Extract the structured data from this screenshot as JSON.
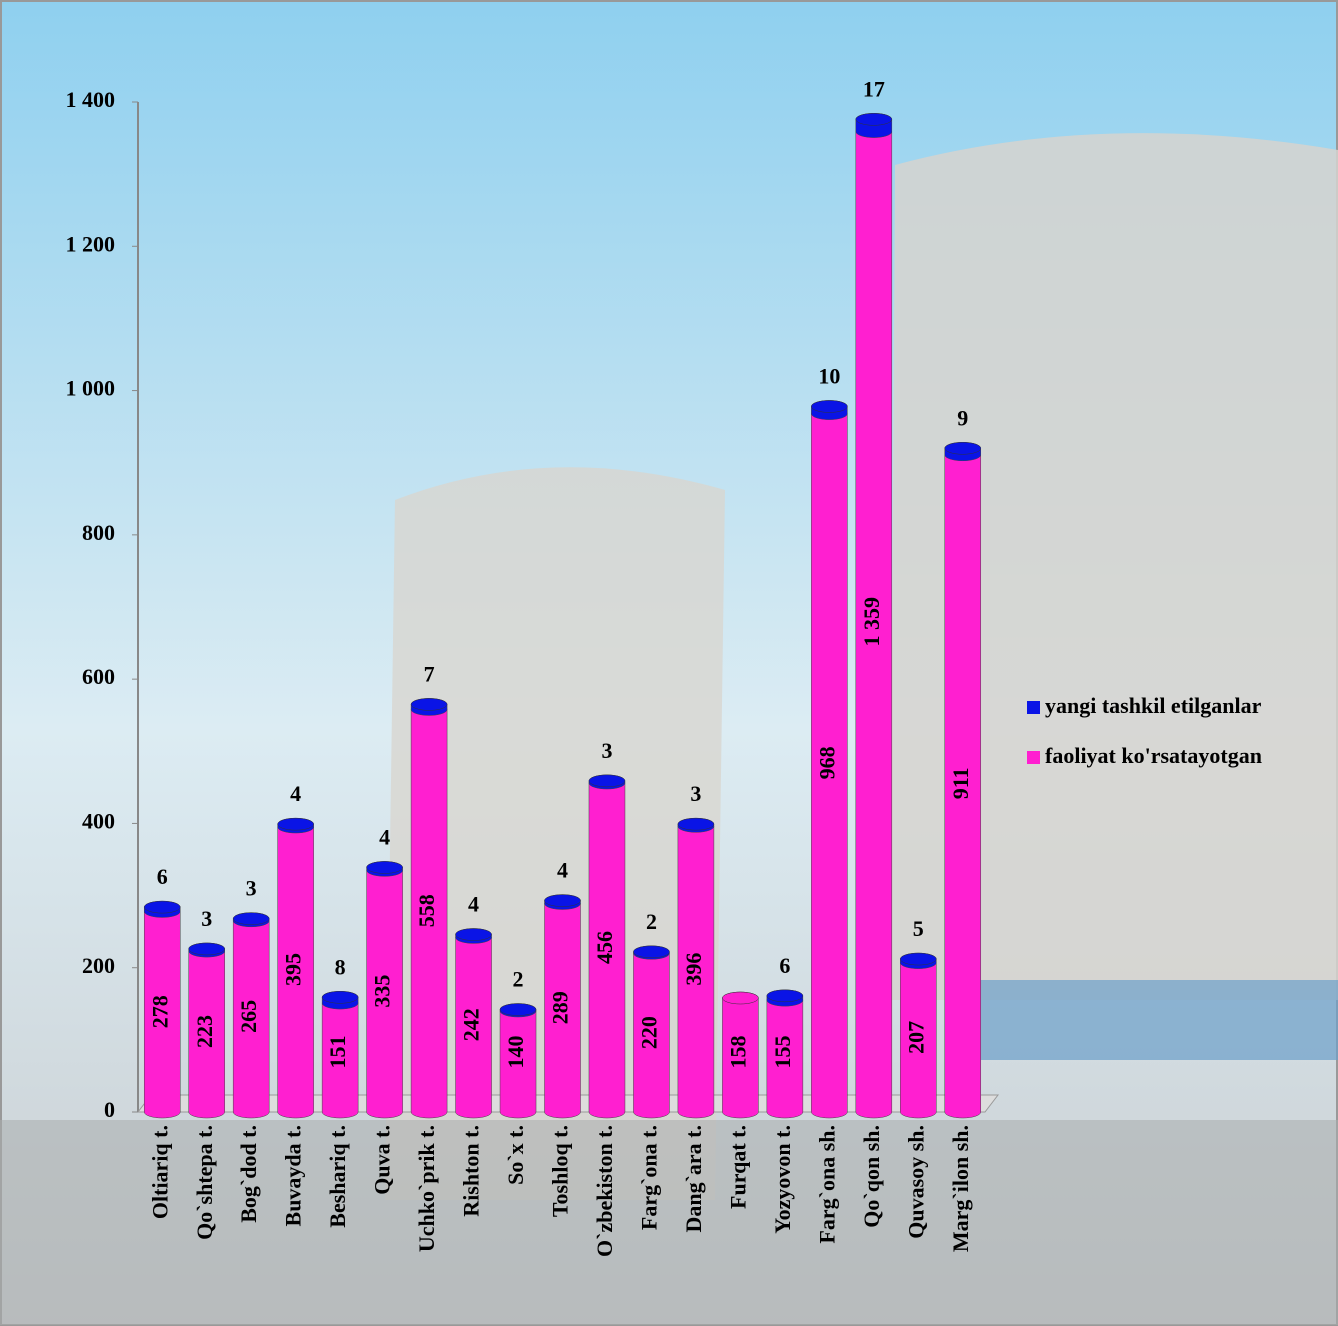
{
  "chart_data": {
    "type": "bar",
    "stacked": true,
    "categories": [
      "Oltiariq t.",
      "Qo`shtepa t.",
      "Bog`dod t.",
      "Buvayda t.",
      "Beshariq t.",
      "Quva t.",
      "Uchko`prik t.",
      "Rishton t.",
      "So`x t.",
      "Toshloq t.",
      "O`zbekiston t.",
      "Farg`ona t.",
      "Dang`ara t.",
      "Furqat t.",
      "Yozyovon t.",
      "Farg`ona sh.",
      "Qo`qon sh.",
      "Quvasoy sh.",
      "Marg`ilon sh."
    ],
    "series": [
      {
        "name": "faoliyat ko'rsatayotgan",
        "color": "#ff1fd0",
        "values": [
          278,
          223,
          265,
          395,
          151,
          335,
          558,
          242,
          140,
          289,
          456,
          220,
          396,
          158,
          155,
          968,
          1359,
          207,
          911
        ],
        "value_labels": [
          "278",
          "223",
          "265",
          "395",
          "151",
          "335",
          "558",
          "242",
          "140",
          "289",
          "456",
          "220",
          "396",
          "158",
          "155",
          "968",
          "1 359",
          "207",
          "911"
        ]
      },
      {
        "name": "yangi tashkil etilganlar",
        "color": "#0a14e6",
        "values": [
          6,
          3,
          3,
          4,
          8,
          4,
          7,
          4,
          2,
          4,
          3,
          2,
          3,
          null,
          6,
          10,
          17,
          5,
          9
        ]
      }
    ],
    "ylim": [
      0,
      1400
    ],
    "yticks": [
      0,
      200,
      400,
      600,
      800,
      {
        "value": 1000,
        "label": "1 000"
      },
      {
        "value": 1200,
        "label": "1 200"
      },
      {
        "value": 1400,
        "label": "1 400"
      }
    ],
    "legend": "right"
  }
}
